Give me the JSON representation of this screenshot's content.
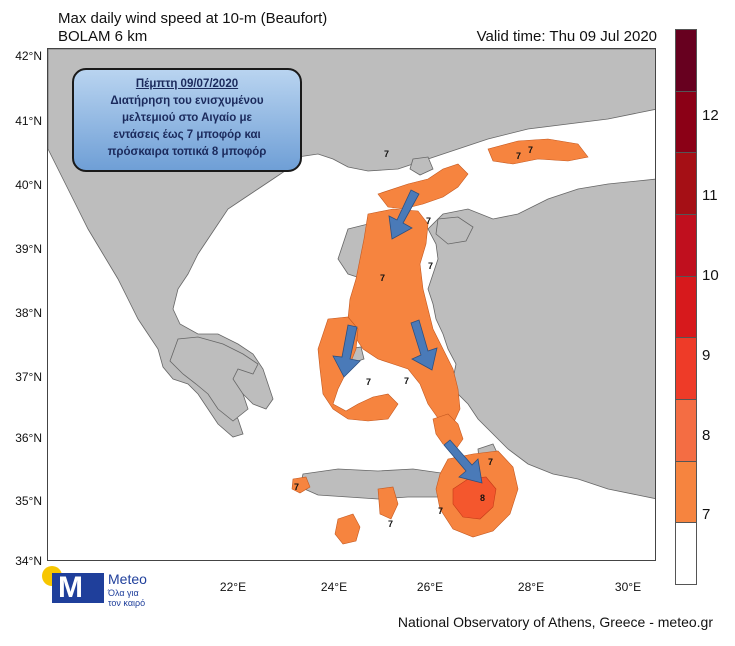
{
  "title": {
    "line1": "Max daily wind speed at 10-m (Beaufort)",
    "line2": "BOLAM 6 km",
    "valid_time": "Valid time: Thu 09 Jul 2020"
  },
  "axes": {
    "lat_labels": [
      "42°N",
      "41°N",
      "40°N",
      "39°N",
      "38°N",
      "37°N",
      "36°N",
      "35°N",
      "34°N"
    ],
    "lon_labels": [
      "22°E",
      "24°E",
      "26°E",
      "28°E",
      "30°E"
    ]
  },
  "annotation": {
    "date": "Πέμπτη 09/07/2020",
    "text": [
      "Διατήρηση του ενισχυμένου",
      "μελτεμιού στο Αιγαίο με",
      "εντάσεις έως 7 μποφόρ και",
      "πρόσκαιρα τοπικά 8 μποφόρ"
    ]
  },
  "colorbar": {
    "segments": [
      {
        "color": "#67001f"
      },
      {
        "color": "#8b0016"
      },
      {
        "color": "#a50f15"
      },
      {
        "color": "#c00f1e"
      },
      {
        "color": "#d7191c"
      },
      {
        "color": "#ee3b28"
      },
      {
        "color": "#f46d43"
      },
      {
        "color": "#f6843f"
      },
      {
        "color": "#ffffff"
      }
    ],
    "labels": [
      "12",
      "11",
      "10",
      "9",
      "8",
      "7"
    ]
  },
  "map_labels": [
    "7",
    "7",
    "7",
    "7",
    "7",
    "7",
    "7",
    "7",
    "7",
    "7",
    "7",
    "7",
    "8"
  ],
  "arrows": 4,
  "logo": {
    "name": "Meteo",
    "tagline": "Όλα για τον καιρό"
  },
  "credit": "National Observatory of Athens, Greece - meteo.gr",
  "colors": {
    "land": "#bdbdbd",
    "sea": "#ffffff",
    "wind7": "#f6843f",
    "wind8": "#f4572d",
    "arrow": "#4a7ab8"
  }
}
